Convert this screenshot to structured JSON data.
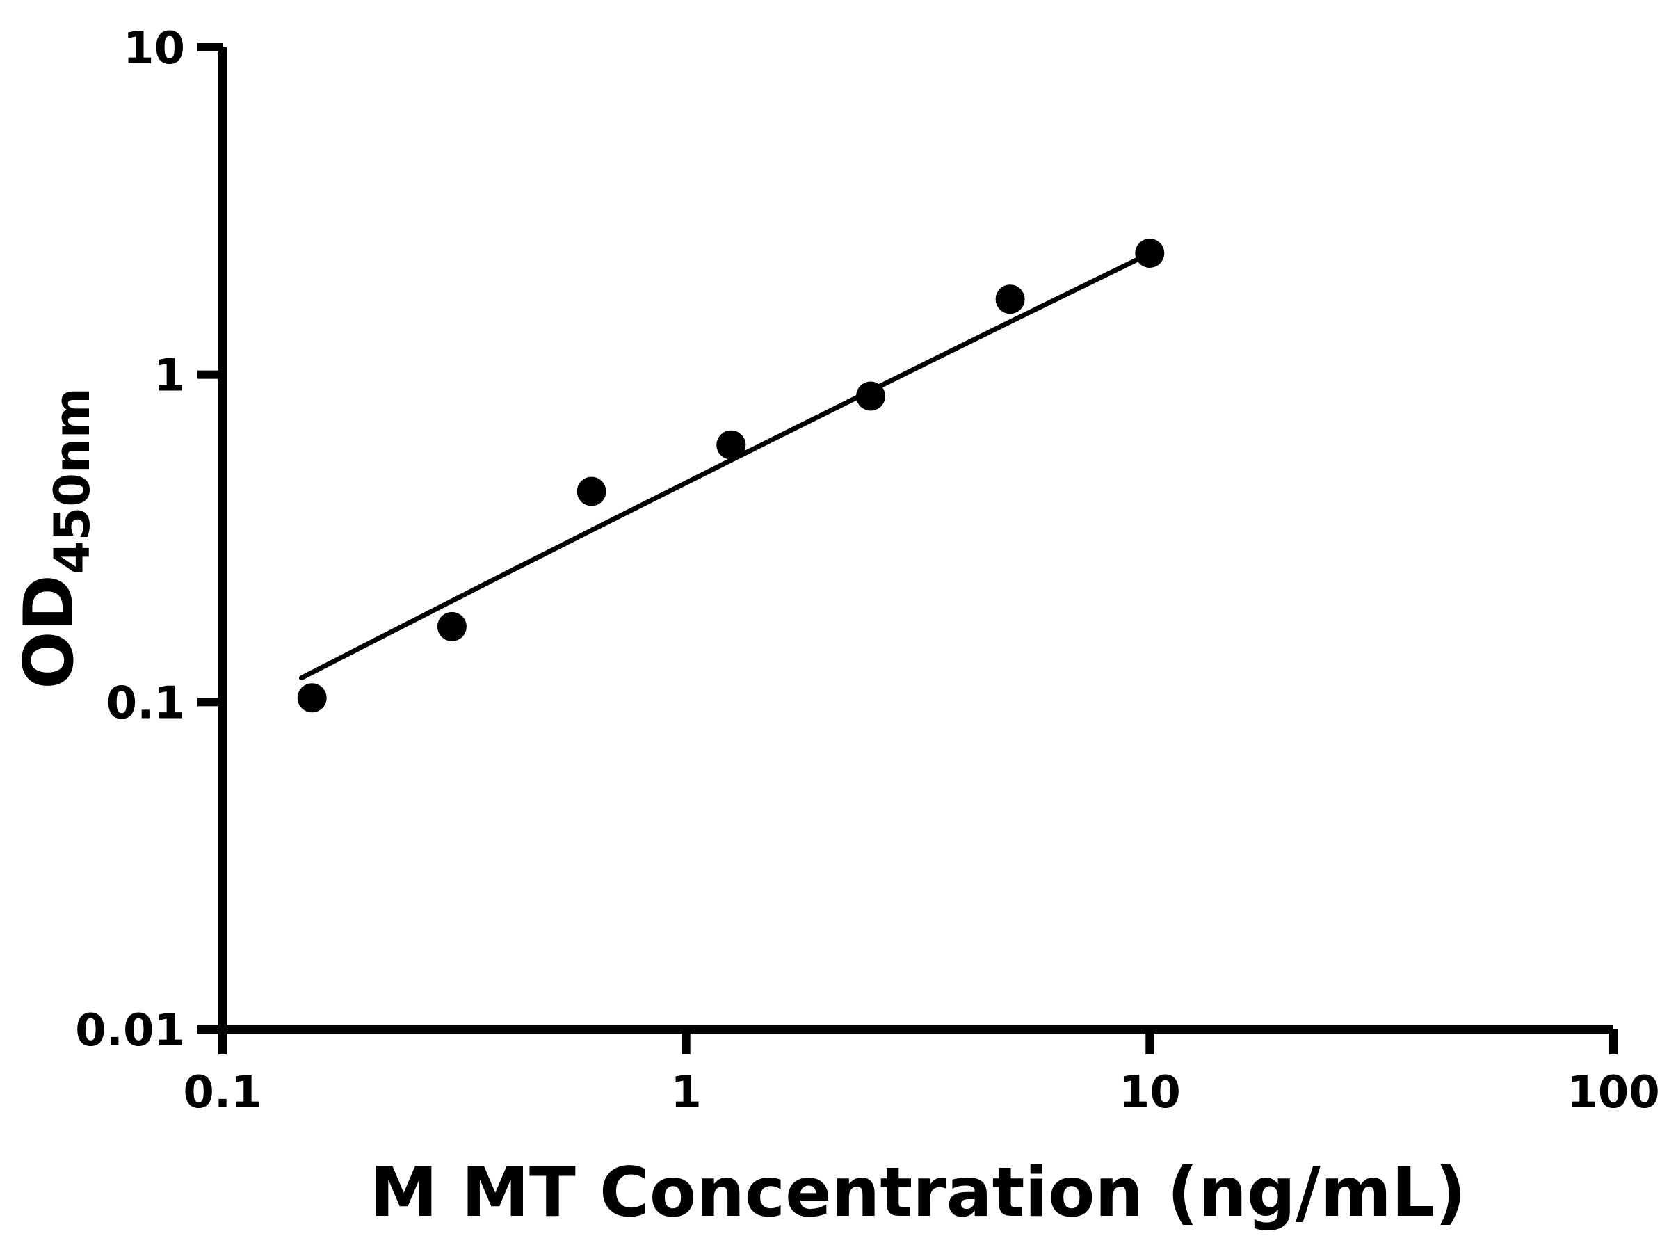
{
  "page": {
    "background_color": "#ffffff"
  },
  "chart_data": {
    "type": "scatter",
    "title": "",
    "xlabel": "M MT Concentration (ng/mL)",
    "ylabel": "OD",
    "ylabel_subscript": "450nm",
    "x_scale": "log",
    "y_scale": "log",
    "xlim": [
      0.1,
      100
    ],
    "ylim": [
      0.01,
      10
    ],
    "x_ticks": [
      0.1,
      1,
      10,
      100
    ],
    "x_tick_labels": [
      "0.1",
      "1",
      "10",
      "100"
    ],
    "y_ticks": [
      10,
      1,
      0.1,
      0.01
    ],
    "y_tick_labels": [
      "10",
      "1",
      "0.1",
      "0.01"
    ],
    "grid": false,
    "legend": false,
    "marker_color": "#000000",
    "line_color": "#000000",
    "axis_color": "#000000",
    "points": [
      {
        "x": 0.156,
        "y": 0.103
      },
      {
        "x": 0.3125,
        "y": 0.17
      },
      {
        "x": 0.625,
        "y": 0.44
      },
      {
        "x": 1.25,
        "y": 0.61
      },
      {
        "x": 2.5,
        "y": 0.86
      },
      {
        "x": 5,
        "y": 1.7
      },
      {
        "x": 10,
        "y": 2.35
      }
    ],
    "fit_curve": [
      {
        "x": 0.148,
        "y": 0.1185
      },
      {
        "x": 0.183,
        "y": 0.1383
      },
      {
        "x": 0.2265,
        "y": 0.1614
      },
      {
        "x": 0.2802,
        "y": 0.1882
      },
      {
        "x": 0.3467,
        "y": 0.2195
      },
      {
        "x": 0.429,
        "y": 0.2558
      },
      {
        "x": 0.5309,
        "y": 0.2977
      },
      {
        "x": 0.6568,
        "y": 0.3468
      },
      {
        "x": 0.8128,
        "y": 0.4036
      },
      {
        "x": 1.0058,
        "y": 0.4696
      },
      {
        "x": 1.2445,
        "y": 0.5463
      },
      {
        "x": 1.5399,
        "y": 0.6352
      },
      {
        "x": 1.9055,
        "y": 0.7381
      },
      {
        "x": 2.3577,
        "y": 0.8573
      },
      {
        "x": 2.9174,
        "y": 0.9954
      },
      {
        "x": 3.6101,
        "y": 1.1554
      },
      {
        "x": 4.4668,
        "y": 1.3407
      },
      {
        "x": 5.527,
        "y": 1.5552
      },
      {
        "x": 6.8391,
        "y": 1.8026
      },
      {
        "x": 8.4606,
        "y": 2.0885
      },
      {
        "x": 10.471,
        "y": 2.4199
      }
    ]
  }
}
